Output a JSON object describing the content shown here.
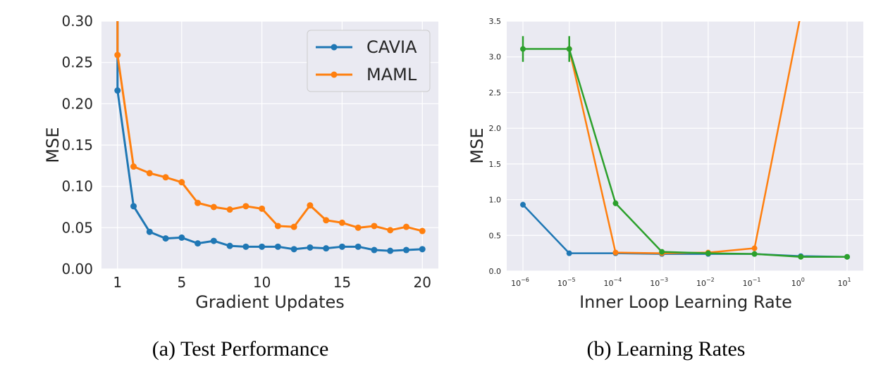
{
  "chart_data": [
    {
      "type": "line",
      "title": "",
      "caption": "(a) Test Performance",
      "xlabel": "Gradient Updates",
      "ylabel": "MSE",
      "xlim": [
        0,
        21
      ],
      "ylim": [
        0,
        0.3
      ],
      "xticks": [
        1,
        5,
        10,
        15,
        20
      ],
      "yticks": [
        0.0,
        0.05,
        0.1,
        0.15,
        0.2,
        0.25,
        0.3
      ],
      "ytick_labels": [
        "0.00",
        "0.05",
        "0.10",
        "0.15",
        "0.20",
        "0.25",
        "0.30"
      ],
      "grid": true,
      "legend_position": "top-right",
      "x": [
        1,
        2,
        3,
        4,
        5,
        6,
        7,
        8,
        9,
        10,
        11,
        12,
        13,
        14,
        15,
        16,
        17,
        18,
        19,
        20
      ],
      "series": [
        {
          "name": "CAVIA",
          "color": "#1f77b4",
          "start": [
            1,
            0.3
          ],
          "values": [
            0.216,
            0.076,
            0.045,
            0.037,
            0.038,
            0.031,
            0.034,
            0.028,
            0.027,
            0.027,
            0.027,
            0.024,
            0.026,
            0.025,
            0.027,
            0.027,
            0.023,
            0.022,
            0.023,
            0.024
          ]
        },
        {
          "name": "MAML",
          "color": "#ff7f0e",
          "start": [
            1,
            0.3
          ],
          "values": [
            0.259,
            0.124,
            0.116,
            0.111,
            0.105,
            0.08,
            0.075,
            0.072,
            0.076,
            0.073,
            0.052,
            0.051,
            0.077,
            0.059,
            0.056,
            0.05,
            0.052,
            0.047,
            0.051,
            0.046
          ]
        }
      ]
    },
    {
      "type": "line",
      "title": "",
      "caption": "(b) Learning Rates",
      "xlabel": "Inner Loop Learning Rate",
      "ylabel": "MSE",
      "x_scale": "log10",
      "xlim": [
        -6.35,
        1.35
      ],
      "ylim": [
        0,
        3.5
      ],
      "xticks": [
        -6,
        -5,
        -4,
        -3,
        -2,
        -1,
        0,
        1
      ],
      "xtick_labels": [
        {
          "base": "10",
          "exp": "−6"
        },
        {
          "base": "10",
          "exp": "−5"
        },
        {
          "base": "10",
          "exp": "−4"
        },
        {
          "base": "10",
          "exp": "−3"
        },
        {
          "base": "10",
          "exp": "−2"
        },
        {
          "base": "10",
          "exp": "−1"
        },
        {
          "base": "10",
          "exp": "0"
        },
        {
          "base": "10",
          "exp": "1"
        }
      ],
      "yticks": [
        0.0,
        0.5,
        1.0,
        1.5,
        2.0,
        2.5,
        3.0,
        3.5
      ],
      "ytick_labels": [
        "0.0",
        "0.5",
        "1.0",
        "1.5",
        "2.0",
        "2.5",
        "3.0",
        "3.5"
      ],
      "grid": true,
      "x": [
        1e-06,
        1e-05,
        0.0001,
        0.001,
        0.01,
        0.1,
        1,
        10
      ],
      "series": [
        {
          "color": "#1f77b4",
          "values": [
            0.93,
            0.25,
            0.25,
            0.24,
            0.24,
            0.24,
            0.21,
            0.2
          ],
          "errors": [
            0.04,
            0,
            0,
            0,
            0,
            0,
            0,
            0
          ]
        },
        {
          "color": "#ff7f0e",
          "values": [
            null,
            3.11,
            0.26,
            0.25,
            0.26,
            0.32,
            3.6,
            null
          ],
          "errors": [
            0,
            0,
            0,
            0,
            0,
            0,
            0,
            0
          ]
        },
        {
          "color": "#2ca02c",
          "values": [
            3.11,
            3.11,
            0.95,
            0.27,
            0.25,
            0.24,
            0.2,
            0.2
          ],
          "errors": [
            0.18,
            0.18,
            0.04,
            0,
            0,
            0,
            0,
            0
          ]
        }
      ]
    }
  ]
}
